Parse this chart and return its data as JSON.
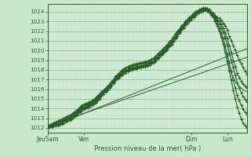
{
  "title": "",
  "xlabel": "Pression niveau de la mer( hPa )",
  "bg_color": "#c8e8cc",
  "plot_bg_color": "#d4edd8",
  "grid_color_major": "#88bb88",
  "grid_color_minor": "#aad4aa",
  "line_color": "#2a5e2a",
  "ylim_min": 1011.5,
  "ylim_max": 1024.8,
  "yticks": [
    1012,
    1013,
    1014,
    1015,
    1016,
    1017,
    1018,
    1019,
    1020,
    1021,
    1022,
    1023,
    1024
  ],
  "xtick_labels": [
    "JeuSam",
    "Ven",
    "Dim",
    "Lun"
  ],
  "xtick_positions": [
    0,
    0.18,
    0.72,
    0.9
  ],
  "total_steps": 100,
  "lines": [
    {
      "x": [
        0,
        1,
        2,
        3,
        4,
        5,
        6,
        7,
        8,
        9,
        10,
        11,
        12,
        13,
        14,
        15,
        16,
        17,
        18,
        19,
        20,
        21,
        22,
        23,
        24,
        25,
        26,
        27,
        28,
        29,
        30,
        31,
        32,
        33,
        34,
        35,
        36,
        37,
        38,
        39,
        40,
        41,
        42,
        43,
        44,
        45,
        46,
        47,
        48,
        49,
        50,
        51,
        52,
        53,
        54,
        55,
        56,
        57,
        58,
        59,
        60,
        61,
        62,
        63,
        64,
        65,
        66,
        67,
        68,
        69,
        70,
        71,
        72,
        73,
        74,
        75,
        76,
        77,
        78,
        79,
        80,
        81,
        82,
        83,
        84,
        85,
        86,
        87,
        88,
        89,
        90,
        91,
        92,
        93,
        94,
        95,
        96,
        97,
        98,
        99,
        100
      ],
      "y": [
        1012.2,
        1012.3,
        1012.4,
        1012.5,
        1012.6,
        1012.7,
        1012.8,
        1012.9,
        1013.0,
        1013.1,
        1013.2,
        1013.3,
        1013.4,
        1013.6,
        1013.7,
        1013.9,
        1014.1,
        1014.3,
        1014.4,
        1014.5,
        1014.6,
        1014.7,
        1014.8,
        1014.9,
        1015.1,
        1015.3,
        1015.5,
        1015.7,
        1015.9,
        1016.1,
        1016.3,
        1016.5,
        1016.8,
        1017.0,
        1017.3,
        1017.5,
        1017.7,
        1017.9,
        1018.1,
        1018.2,
        1018.3,
        1018.4,
        1018.5,
        1018.55,
        1018.6,
        1018.65,
        1018.7,
        1018.75,
        1018.8,
        1018.85,
        1018.9,
        1019.0,
        1019.1,
        1019.2,
        1019.4,
        1019.6,
        1019.8,
        1020.0,
        1020.2,
        1020.4,
        1020.6,
        1020.9,
        1021.1,
        1021.4,
        1021.7,
        1022.0,
        1022.2,
        1022.5,
        1022.7,
        1023.0,
        1023.2,
        1023.4,
        1023.6,
        1023.8,
        1024.0,
        1024.1,
        1024.2,
        1024.3,
        1024.3,
        1024.3,
        1024.2,
        1024.1,
        1024.0,
        1023.8,
        1023.6,
        1023.4,
        1023.3,
        1023.1,
        1022.8,
        1022.5,
        1022.1,
        1021.5,
        1021.0,
        1020.5,
        1020.0,
        1019.5,
        1019.0,
        1018.6,
        1018.2,
        1017.8,
        1017.5
      ],
      "marker": "+",
      "lw": 0.8
    },
    {
      "x": [
        0,
        1,
        2,
        3,
        4,
        5,
        6,
        7,
        8,
        9,
        10,
        11,
        12,
        13,
        14,
        15,
        16,
        17,
        18,
        19,
        20,
        21,
        22,
        23,
        24,
        25,
        26,
        27,
        28,
        29,
        30,
        31,
        32,
        33,
        34,
        35,
        36,
        37,
        38,
        39,
        40,
        41,
        42,
        43,
        44,
        45,
        46,
        47,
        48,
        49,
        50,
        51,
        52,
        53,
        54,
        55,
        56,
        57,
        58,
        59,
        60,
        61,
        62,
        63,
        64,
        65,
        66,
        67,
        68,
        69,
        70,
        71,
        72,
        73,
        74,
        75,
        76,
        77,
        78,
        79,
        80,
        81,
        82,
        83,
        84,
        85,
        86,
        87,
        88,
        89,
        90,
        91,
        92,
        93,
        94,
        95,
        96,
        97,
        98,
        99,
        100
      ],
      "y": [
        1012.1,
        1012.2,
        1012.3,
        1012.4,
        1012.5,
        1012.6,
        1012.7,
        1012.8,
        1012.9,
        1013.0,
        1013.1,
        1013.2,
        1013.3,
        1013.5,
        1013.6,
        1013.8,
        1014.0,
        1014.2,
        1014.3,
        1014.4,
        1014.5,
        1014.6,
        1014.7,
        1014.8,
        1015.0,
        1015.2,
        1015.4,
        1015.6,
        1015.8,
        1016.0,
        1016.2,
        1016.4,
        1016.7,
        1016.9,
        1017.2,
        1017.4,
        1017.6,
        1017.8,
        1018.0,
        1018.1,
        1018.2,
        1018.3,
        1018.4,
        1018.45,
        1018.5,
        1018.55,
        1018.6,
        1018.65,
        1018.7,
        1018.75,
        1018.8,
        1018.9,
        1019.0,
        1019.1,
        1019.3,
        1019.5,
        1019.7,
        1019.9,
        1020.1,
        1020.3,
        1020.5,
        1020.8,
        1021.0,
        1021.3,
        1021.6,
        1021.9,
        1022.1,
        1022.4,
        1022.6,
        1022.9,
        1023.1,
        1023.3,
        1023.5,
        1023.7,
        1023.9,
        1024.1,
        1024.2,
        1024.3,
        1024.4,
        1024.4,
        1024.35,
        1024.2,
        1024.0,
        1023.8,
        1023.5,
        1023.2,
        1023.0,
        1022.7,
        1022.3,
        1021.8,
        1021.2,
        1020.5,
        1019.8,
        1019.0,
        1018.3,
        1017.7,
        1017.2,
        1016.8,
        1016.5,
        1016.3,
        1016.1
      ],
      "marker": "+",
      "lw": 0.8
    },
    {
      "x": [
        0,
        1,
        2,
        3,
        4,
        5,
        6,
        7,
        8,
        9,
        10,
        11,
        12,
        13,
        14,
        15,
        16,
        17,
        18,
        19,
        20,
        21,
        22,
        23,
        24,
        25,
        26,
        27,
        28,
        29,
        30,
        31,
        32,
        33,
        34,
        35,
        36,
        37,
        38,
        39,
        40,
        41,
        42,
        43,
        44,
        45,
        46,
        47,
        48,
        49,
        50,
        51,
        52,
        53,
        54,
        55,
        56,
        57,
        58,
        59,
        60,
        61,
        62,
        63,
        64,
        65,
        66,
        67,
        68,
        69,
        70,
        71,
        72,
        73,
        74,
        75,
        76,
        77,
        78,
        79,
        80,
        81,
        82,
        83,
        84,
        85,
        86,
        87,
        88,
        89,
        90,
        91,
        92,
        93,
        94,
        95,
        96,
        97,
        98,
        99,
        100
      ],
      "y": [
        1012.0,
        1012.1,
        1012.2,
        1012.3,
        1012.35,
        1012.4,
        1012.5,
        1012.6,
        1012.7,
        1012.8,
        1012.9,
        1013.0,
        1013.1,
        1013.3,
        1013.4,
        1013.6,
        1013.8,
        1014.0,
        1014.1,
        1014.2,
        1014.3,
        1014.4,
        1014.5,
        1014.6,
        1014.8,
        1015.0,
        1015.2,
        1015.5,
        1015.7,
        1015.9,
        1016.1,
        1016.3,
        1016.5,
        1016.8,
        1017.0,
        1017.2,
        1017.4,
        1017.6,
        1017.8,
        1017.9,
        1018.0,
        1018.1,
        1018.2,
        1018.25,
        1018.3,
        1018.35,
        1018.4,
        1018.45,
        1018.5,
        1018.55,
        1018.6,
        1018.7,
        1018.8,
        1018.9,
        1019.1,
        1019.3,
        1019.5,
        1019.7,
        1019.9,
        1020.1,
        1020.3,
        1020.6,
        1020.8,
        1021.1,
        1021.4,
        1021.7,
        1022.0,
        1022.3,
        1022.5,
        1022.8,
        1023.0,
        1023.2,
        1023.4,
        1023.6,
        1023.8,
        1024.0,
        1024.1,
        1024.2,
        1024.3,
        1024.35,
        1024.3,
        1024.1,
        1023.9,
        1023.6,
        1023.3,
        1023.0,
        1022.7,
        1022.3,
        1021.9,
        1021.3,
        1020.6,
        1019.8,
        1019.0,
        1018.2,
        1017.4,
        1016.7,
        1016.1,
        1015.6,
        1015.2,
        1014.9,
        1014.7
      ],
      "marker": "+",
      "lw": 0.8
    },
    {
      "x": [
        0,
        1,
        2,
        3,
        4,
        5,
        6,
        7,
        8,
        9,
        10,
        11,
        12,
        13,
        14,
        15,
        16,
        17,
        18,
        19,
        20,
        21,
        22,
        23,
        24,
        25,
        26,
        27,
        28,
        29,
        30,
        31,
        32,
        33,
        34,
        35,
        36,
        37,
        38,
        39,
        40,
        41,
        42,
        43,
        44,
        45,
        46,
        47,
        48,
        49,
        50,
        51,
        52,
        53,
        54,
        55,
        56,
        57,
        58,
        59,
        60,
        61,
        62,
        63,
        64,
        65,
        66,
        67,
        68,
        69,
        70,
        71,
        72,
        73,
        74,
        75,
        76,
        77,
        78,
        79,
        80,
        81,
        82,
        83,
        84,
        85,
        86,
        87,
        88,
        89,
        90,
        91,
        92,
        93,
        94,
        95,
        96,
        97,
        98,
        99,
        100
      ],
      "y": [
        1012.0,
        1012.05,
        1012.1,
        1012.2,
        1012.25,
        1012.3,
        1012.4,
        1012.5,
        1012.6,
        1012.7,
        1012.8,
        1012.9,
        1013.0,
        1013.2,
        1013.3,
        1013.5,
        1013.7,
        1013.9,
        1014.0,
        1014.1,
        1014.2,
        1014.3,
        1014.4,
        1014.5,
        1014.7,
        1014.9,
        1015.1,
        1015.4,
        1015.6,
        1015.8,
        1016.0,
        1016.2,
        1016.5,
        1016.7,
        1017.0,
        1017.2,
        1017.3,
        1017.5,
        1017.7,
        1017.8,
        1017.9,
        1018.0,
        1018.1,
        1018.15,
        1018.2,
        1018.25,
        1018.3,
        1018.35,
        1018.4,
        1018.45,
        1018.5,
        1018.6,
        1018.7,
        1018.8,
        1019.0,
        1019.2,
        1019.4,
        1019.6,
        1019.8,
        1020.0,
        1020.2,
        1020.5,
        1020.7,
        1021.0,
        1021.3,
        1021.6,
        1021.9,
        1022.2,
        1022.4,
        1022.7,
        1022.9,
        1023.1,
        1023.3,
        1023.5,
        1023.7,
        1023.9,
        1024.0,
        1024.1,
        1024.2,
        1024.25,
        1024.2,
        1024.0,
        1023.8,
        1023.5,
        1023.1,
        1022.7,
        1022.3,
        1021.8,
        1021.2,
        1020.4,
        1019.6,
        1018.7,
        1017.8,
        1016.9,
        1016.1,
        1015.4,
        1014.8,
        1014.3,
        1013.9,
        1013.6,
        1013.4
      ],
      "marker": "+",
      "lw": 0.8
    },
    {
      "x": [
        0,
        1,
        2,
        3,
        4,
        5,
        6,
        7,
        8,
        9,
        10,
        11,
        12,
        13,
        14,
        15,
        16,
        17,
        18,
        19,
        20,
        21,
        22,
        23,
        24,
        25,
        26,
        27,
        28,
        29,
        30,
        31,
        32,
        33,
        34,
        35,
        36,
        37,
        38,
        39,
        40,
        41,
        42,
        43,
        44,
        45,
        46,
        47,
        48,
        49,
        50,
        51,
        52,
        53,
        54,
        55,
        56,
        57,
        58,
        59,
        60,
        61,
        62,
        63,
        64,
        65,
        66,
        67,
        68,
        69,
        70,
        71,
        72,
        73,
        74,
        75,
        76,
        77,
        78,
        79,
        80,
        81,
        82,
        83,
        84,
        85,
        86,
        87,
        88,
        89,
        90,
        91,
        92,
        93,
        94,
        95,
        96,
        97,
        98,
        99,
        100
      ],
      "y": [
        1012.0,
        1012.05,
        1012.1,
        1012.15,
        1012.2,
        1012.25,
        1012.3,
        1012.4,
        1012.5,
        1012.6,
        1012.7,
        1012.8,
        1012.9,
        1013.1,
        1013.2,
        1013.4,
        1013.6,
        1013.8,
        1013.9,
        1014.0,
        1014.1,
        1014.2,
        1014.3,
        1014.4,
        1014.6,
        1014.8,
        1015.0,
        1015.3,
        1015.5,
        1015.7,
        1015.9,
        1016.1,
        1016.4,
        1016.6,
        1016.9,
        1017.1,
        1017.2,
        1017.4,
        1017.6,
        1017.7,
        1017.8,
        1017.9,
        1018.0,
        1018.05,
        1018.1,
        1018.15,
        1018.2,
        1018.25,
        1018.3,
        1018.35,
        1018.4,
        1018.5,
        1018.6,
        1018.7,
        1018.9,
        1019.1,
        1019.3,
        1019.5,
        1019.7,
        1019.9,
        1020.1,
        1020.4,
        1020.6,
        1020.9,
        1021.2,
        1021.5,
        1021.8,
        1022.1,
        1022.3,
        1022.6,
        1022.8,
        1023.0,
        1023.2,
        1023.4,
        1023.6,
        1023.8,
        1023.9,
        1024.0,
        1024.1,
        1024.15,
        1024.1,
        1023.9,
        1023.7,
        1023.4,
        1023.0,
        1022.5,
        1022.0,
        1021.4,
        1020.7,
        1019.8,
        1018.9,
        1017.9,
        1016.9,
        1015.9,
        1015.0,
        1014.2,
        1013.5,
        1012.9,
        1012.5,
        1012.2,
        1012.0
      ],
      "marker": "+",
      "lw": 0.8
    },
    {
      "x": [
        0,
        1,
        2,
        3,
        4,
        5,
        6,
        7,
        8,
        9,
        10,
        11,
        12,
        13,
        14,
        15,
        16,
        17,
        18,
        19,
        20,
        21,
        22,
        23,
        24,
        25,
        26,
        27,
        28,
        29,
        30,
        31,
        32,
        33,
        34,
        35,
        36,
        37,
        38,
        39,
        40,
        41,
        42,
        43,
        44,
        45,
        46,
        47,
        48,
        49,
        50,
        51,
        52,
        53,
        54,
        55,
        56,
        57,
        58,
        59,
        60,
        61,
        62,
        63,
        64,
        65,
        66,
        67,
        68,
        69,
        70,
        71,
        72,
        73,
        74,
        75,
        76,
        77,
        78,
        79,
        80,
        81,
        82,
        83,
        84,
        85,
        86,
        87,
        88,
        89,
        90,
        91,
        92,
        93,
        94,
        95,
        96,
        97,
        98,
        99,
        100
      ],
      "y": [
        1012.2,
        1012.3,
        1012.4,
        1012.5,
        1012.6,
        1012.65,
        1012.7,
        1012.75,
        1012.8,
        1012.9,
        1013.0,
        1013.1,
        1013.2,
        1013.4,
        1013.5,
        1013.7,
        1013.9,
        1014.1,
        1014.2,
        1014.3,
        1014.4,
        1014.5,
        1014.6,
        1014.7,
        1014.9,
        1015.1,
        1015.3,
        1015.6,
        1015.8,
        1016.0,
        1016.2,
        1016.4,
        1016.6,
        1016.9,
        1017.1,
        1017.3,
        1017.5,
        1017.7,
        1017.9,
        1018.0,
        1018.05,
        1018.1,
        1018.15,
        1018.2,
        1018.25,
        1018.3,
        1018.35,
        1018.4,
        1018.45,
        1018.5,
        1018.55,
        1018.65,
        1018.75,
        1018.85,
        1019.05,
        1019.2,
        1019.4,
        1019.6,
        1019.8,
        1020.0,
        1020.2,
        1020.5,
        1020.7,
        1021.0,
        1021.3,
        1021.6,
        1021.9,
        1022.1,
        1022.4,
        1022.6,
        1022.9,
        1023.1,
        1023.3,
        1023.5,
        1023.7,
        1023.85,
        1024.0,
        1024.1,
        1024.15,
        1024.2,
        1024.1,
        1023.9,
        1023.7,
        1023.4,
        1023.0,
        1022.5,
        1022.0,
        1021.4,
        1020.7,
        1019.8,
        1019.0,
        1018.3,
        1017.7,
        1017.2,
        1016.8,
        1016.5,
        1016.3,
        1016.1,
        1015.9,
        1015.8,
        1015.7
      ],
      "marker": null,
      "lw": 0.7
    },
    {
      "x": [
        0,
        100
      ],
      "y": [
        1012.2,
        1019.3
      ],
      "marker": null,
      "lw": 0.7
    },
    {
      "x": [
        0,
        100
      ],
      "y": [
        1012.0,
        1020.2
      ],
      "marker": null,
      "lw": 0.7
    }
  ]
}
